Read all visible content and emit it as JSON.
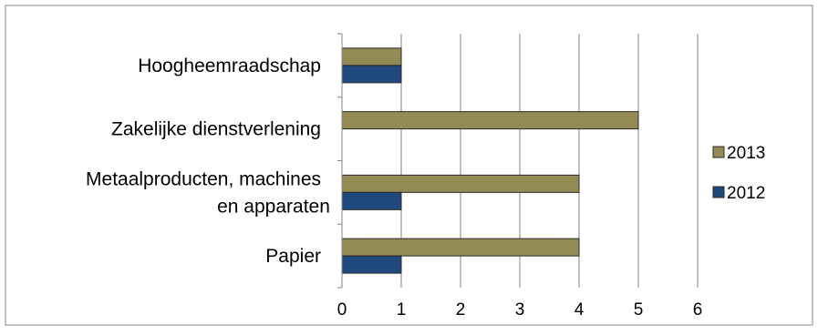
{
  "chart_data": {
    "type": "bar",
    "orientation": "horizontal",
    "categories": [
      "Hoogheemraadschap",
      "Zakelijke dienstverlening",
      "Metaalproducten, machines en apparaten",
      "Papier"
    ],
    "category_lines": [
      [
        "Hoogheemraadschap"
      ],
      [
        "Zakelijke dienstverlening"
      ],
      [
        "Metaalproducten, machines",
        "en apparaten"
      ],
      [
        "Papier"
      ]
    ],
    "series": [
      {
        "name": "2013",
        "color": "#948A54",
        "values": [
          1,
          5,
          4,
          4
        ]
      },
      {
        "name": "2012",
        "color": "#1F497D",
        "values": [
          1,
          0,
          1,
          1
        ]
      }
    ],
    "xlim": [
      0,
      6
    ],
    "xticks": [
      "0",
      "1",
      "2",
      "3",
      "4",
      "5",
      "6"
    ],
    "grid": "vertical",
    "legend_position": "right",
    "title": "",
    "xlabel": "",
    "ylabel": ""
  }
}
